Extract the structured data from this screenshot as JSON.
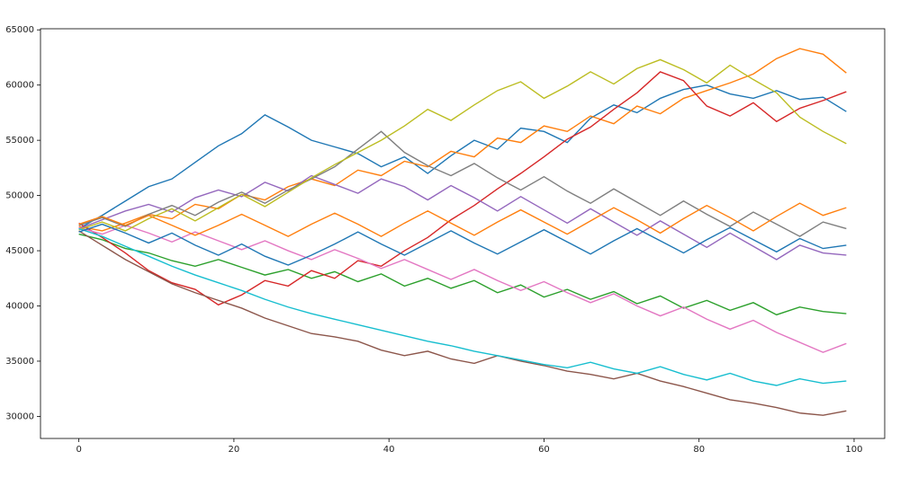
{
  "chart_data": {
    "type": "line",
    "x": [
      0,
      3,
      6,
      9,
      12,
      15,
      18,
      21,
      24,
      27,
      30,
      33,
      36,
      39,
      42,
      45,
      48,
      51,
      54,
      57,
      60,
      63,
      66,
      69,
      72,
      75,
      78,
      81,
      84,
      87,
      90,
      93,
      96,
      99
    ],
    "xlim": [
      -4.95,
      103.95
    ],
    "xticks": [
      0,
      20,
      40,
      60,
      80,
      100
    ],
    "ylim": [
      28000,
      65100
    ],
    "yticks": [
      30000,
      35000,
      40000,
      45000,
      50000,
      55000,
      60000,
      65000
    ],
    "grid": false,
    "series": [
      {
        "color": "#1f77b4",
        "values": [
          47000,
          48200,
          49500,
          50800,
          51500,
          53000,
          54500,
          55600,
          57300,
          56200,
          55000,
          54400,
          53800,
          52600,
          53500,
          52000,
          53600,
          55000,
          54200,
          56100,
          55800,
          54800,
          57000,
          58200,
          57500,
          58800,
          59600,
          60000,
          59200,
          58800,
          59500,
          58700,
          58900,
          57600
        ]
      },
      {
        "color": "#ff7f0e",
        "values": [
          47200,
          46800,
          47500,
          48300,
          47900,
          49200,
          48800,
          50100,
          49600,
          50800,
          51500,
          50900,
          52300,
          51800,
          53100,
          52600,
          54000,
          53500,
          55200,
          54800,
          56300,
          55800,
          57200,
          56500,
          58100,
          57400,
          58800,
          59500,
          60200,
          61000,
          62400,
          63300,
          62800,
          61100
        ]
      },
      {
        "color": "#2ca02c",
        "values": [
          46500,
          46000,
          45200,
          44800,
          44100,
          43600,
          44200,
          43500,
          42800,
          43300,
          42500,
          43100,
          42200,
          42900,
          41800,
          42500,
          41600,
          42300,
          41200,
          41900,
          40800,
          41500,
          40600,
          41300,
          40200,
          40900,
          39800,
          40500,
          39600,
          40300,
          39200,
          39900,
          39500,
          39300
        ]
      },
      {
        "color": "#d62728",
        "values": [
          47500,
          46200,
          44800,
          43200,
          42100,
          41500,
          40100,
          41000,
          42300,
          41800,
          43200,
          42500,
          44100,
          43600,
          45000,
          46200,
          47800,
          49100,
          50600,
          52000,
          53500,
          55100,
          56200,
          57800,
          59300,
          61200,
          60400,
          58100,
          57200,
          58400,
          56700,
          57900,
          58600,
          59400
        ]
      },
      {
        "color": "#9467bd",
        "values": [
          47000,
          47800,
          48600,
          49200,
          48500,
          49800,
          50500,
          49900,
          51200,
          50400,
          51800,
          51000,
          50200,
          51500,
          50800,
          49600,
          50900,
          49800,
          48600,
          49900,
          48700,
          47500,
          48800,
          47600,
          46400,
          47700,
          46500,
          45300,
          46600,
          45400,
          44200,
          45500,
          44800,
          44600
        ]
      },
      {
        "color": "#8c564b",
        "values": [
          46800,
          45500,
          44200,
          43100,
          42000,
          41200,
          40500,
          39800,
          38900,
          38200,
          37500,
          37200,
          36800,
          36000,
          35500,
          35900,
          35200,
          34800,
          35500,
          35000,
          34600,
          34100,
          33800,
          33400,
          33900,
          33200,
          32700,
          32100,
          31500,
          31200,
          30800,
          30300,
          30100,
          30500
        ]
      },
      {
        "color": "#e377c2",
        "values": [
          47100,
          46500,
          47300,
          46600,
          45800,
          46700,
          45900,
          45100,
          45900,
          45000,
          44200,
          45100,
          44300,
          43400,
          44200,
          43300,
          42400,
          43300,
          42300,
          41400,
          42200,
          41200,
          40300,
          41100,
          40000,
          39100,
          39900,
          38800,
          37900,
          38700,
          37600,
          36700,
          35800,
          36600
        ]
      },
      {
        "color": "#7f7f7f",
        "values": [
          47300,
          48000,
          47200,
          48300,
          49100,
          48200,
          49400,
          50300,
          49300,
          50500,
          51500,
          52600,
          54200,
          55800,
          53900,
          52700,
          51800,
          52900,
          51600,
          50500,
          51700,
          50400,
          49300,
          50600,
          49400,
          48200,
          49500,
          48300,
          47200,
          48500,
          47400,
          46300,
          47600,
          47000
        ]
      },
      {
        "color": "#bcbd22",
        "values": [
          46900,
          47600,
          46800,
          47900,
          48800,
          47700,
          48900,
          50100,
          49000,
          50300,
          51600,
          52800,
          53900,
          55000,
          56300,
          57800,
          56800,
          58200,
          59500,
          60300,
          58800,
          59900,
          61200,
          60100,
          61500,
          62300,
          61400,
          60200,
          61800,
          60500,
          59300,
          57100,
          55800,
          54700
        ]
      },
      {
        "color": "#17becf",
        "values": [
          47000,
          46300,
          45400,
          44500,
          43600,
          42800,
          42100,
          41400,
          40600,
          39900,
          39300,
          38800,
          38300,
          37800,
          37300,
          36800,
          36400,
          35900,
          35500,
          35100,
          34700,
          34400,
          34900,
          34300,
          33900,
          34500,
          33800,
          33300,
          33900,
          33200,
          32800,
          33400,
          33000,
          33200
        ]
      },
      {
        "color": "#1f77b4",
        "values": [
          46700,
          47400,
          46600,
          45700,
          46600,
          45500,
          44600,
          45600,
          44500,
          43700,
          44600,
          45600,
          46700,
          45600,
          44600,
          45700,
          46800,
          45700,
          44700,
          45800,
          46900,
          45800,
          44700,
          45900,
          47000,
          45900,
          44800,
          46000,
          47100,
          46000,
          44900,
          46100,
          45200,
          45500
        ]
      },
      {
        "color": "#ff7f0e",
        "values": [
          47400,
          48100,
          47300,
          48200,
          47300,
          46400,
          47300,
          48300,
          47300,
          46300,
          47400,
          48400,
          47400,
          46300,
          47500,
          48600,
          47500,
          46400,
          47600,
          48700,
          47600,
          46500,
          47700,
          48900,
          47800,
          46600,
          47900,
          49100,
          48000,
          46800,
          48100,
          49300,
          48200,
          48900
        ]
      }
    ]
  }
}
